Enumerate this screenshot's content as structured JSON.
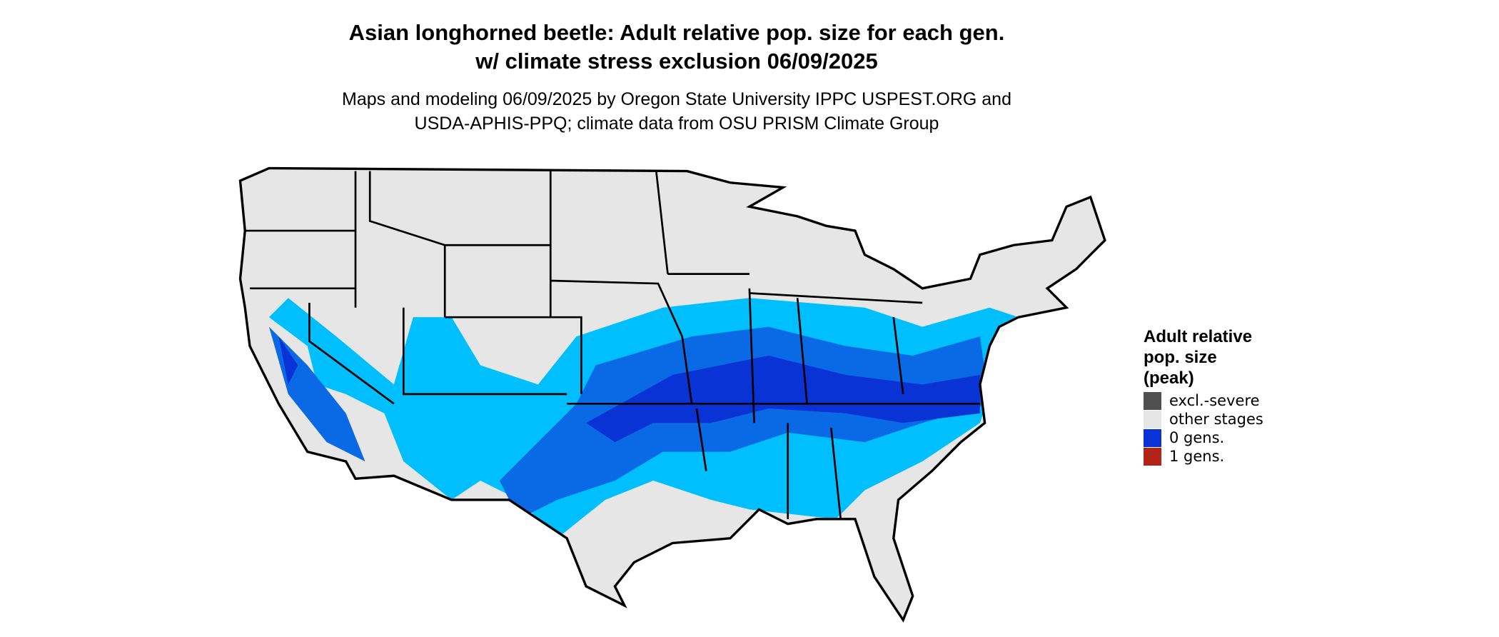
{
  "header": {
    "title": [
      "Asian longhorned beetle: Adult relative pop. size for each gen.",
      "w/ climate stress exclusion 06/09/2025"
    ],
    "subtitle": [
      "Maps and modeling 06/09/2025 by Oregon State University IPPC USPEST.ORG and",
      "USDA-APHIS-PPQ; climate data from OSU PRISM Climate Group"
    ]
  },
  "legend": {
    "title": [
      "Adult relative",
      "pop. size",
      "(peak)"
    ],
    "items": [
      {
        "label": "excl.-severe",
        "color": "#505050"
      },
      {
        "label": "other stages",
        "color": "#e6e6e6"
      },
      {
        "label": "0 gens.",
        "color": "#0a33d6"
      },
      {
        "label": "1 gens.",
        "color": "#b22418"
      }
    ]
  }
}
